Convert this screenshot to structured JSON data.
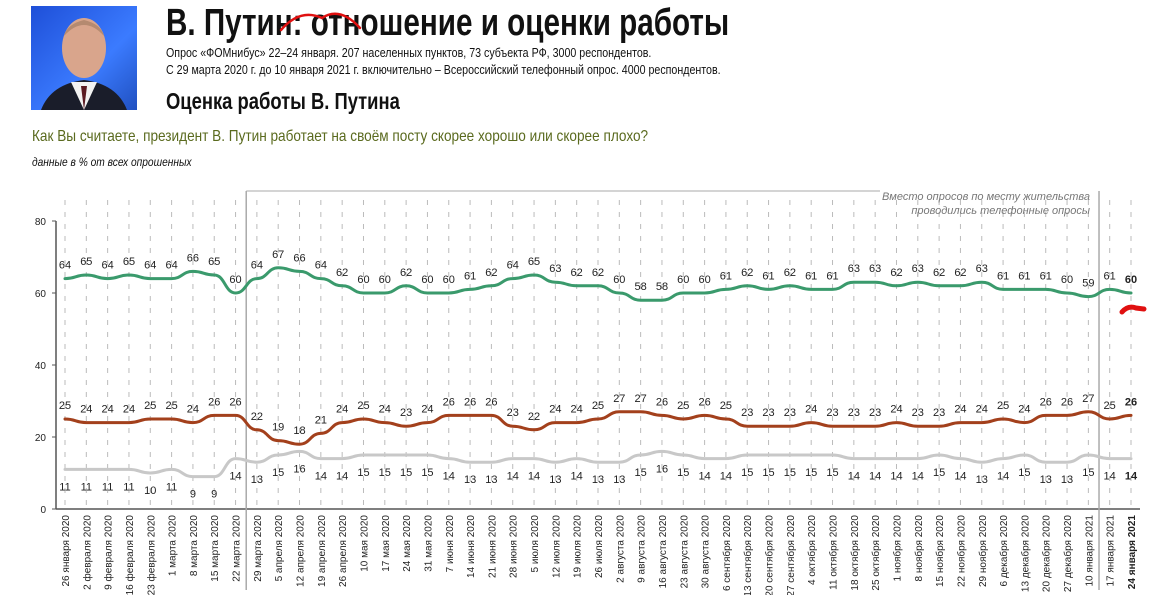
{
  "header": {
    "title": "В. Путин: отношение и оценки работы",
    "subtitle_1": "Опрос «ФОМнибус» 22–24 января. 207 населенных пунктов, 73 субъекта РФ, 3000 респондентов.",
    "subtitle_2": "С 29 марта 2020 г. до 10 января 2021 г. включительно – Всероссийский телефонный опрос. 4000 респондентов.",
    "section_title": "Оценка работы В. Путина",
    "question": "Как Вы считаете, президент В. Путин работает на своём посту скорее хорошо или скорее плохо?",
    "units": "данные в % от всех опрошенных"
  },
  "chart_data": {
    "type": "line",
    "ylim": [
      0,
      80
    ],
    "yticks": [
      0,
      20,
      40,
      60,
      80
    ],
    "grid": "vertical dashed",
    "annotation": {
      "line_1": "Вместо опросов по месту жительства",
      "line_2": "проводились телефонные опросы",
      "from": "29 марта 2020",
      "to": "10 января 2021"
    },
    "x": [
      "26 января 2020",
      "2 февраля 2020",
      "9 февраля 2020",
      "16 февраля 2020",
      "23 февраля 2020",
      "1 марта 2020",
      "8 марта 2020",
      "15 марта 2020",
      "22 марта 2020",
      "29 марта 2020",
      "5 апреля 2020",
      "12 апреля 2020",
      "19 апреля 2020",
      "26 апреля 2020",
      "10 мая 2020",
      "17 мая 2020",
      "24 мая 2020",
      "31 мая 2020",
      "7 июня 2020",
      "14 июня 2020",
      "21 июня 2020",
      "28 июня 2020",
      "5 июля 2020",
      "12 июля 2020",
      "19 июля 2020",
      "26 июля 2020",
      "2 августа 2020",
      "9 августа 2020",
      "16 августа 2020",
      "23 августа 2020",
      "30 августа 2020",
      "6 сентября 2020",
      "13 сентября 2020",
      "20 сентября 2020",
      "27 сентября 2020",
      "4 октября 2020",
      "11 октября 2020",
      "18 октября 2020",
      "25 октября 2020",
      "1 ноября 2020",
      "8 ноября 2020",
      "15 ноября 2020",
      "22 ноября 2020",
      "29 ноября 2020",
      "6 декабря 2020",
      "13 декабря 2020",
      "20 декабря 2020",
      "27 декабря 2020",
      "10 января 2021",
      "17 января 2021",
      "24 января 2021"
    ],
    "series": [
      {
        "color": "#3a9a6c",
        "label_pos": "above",
        "values": [
          64,
          65,
          64,
          65,
          64,
          64,
          66,
          65,
          60,
          64,
          67,
          66,
          64,
          62,
          60,
          60,
          62,
          60,
          60,
          61,
          62,
          64,
          65,
          63,
          62,
          62,
          60,
          58,
          58,
          60,
          60,
          61,
          62,
          61,
          62,
          61,
          61,
          63,
          63,
          62,
          63,
          62,
          62,
          63,
          61,
          61,
          61,
          60,
          59,
          61,
          60
        ]
      },
      {
        "color": "#a3401c",
        "label_pos": "above",
        "values": [
          25,
          24,
          24,
          24,
          25,
          25,
          24,
          26,
          26,
          22,
          19,
          18,
          21,
          24,
          25,
          24,
          23,
          24,
          26,
          26,
          26,
          23,
          22,
          24,
          24,
          25,
          27,
          27,
          26,
          25,
          26,
          25,
          23,
          23,
          23,
          24,
          23,
          23,
          23,
          24,
          23,
          23,
          24,
          24,
          25,
          24,
          26,
          26,
          27,
          25,
          26
        ]
      },
      {
        "color": "#c8c8c8",
        "label_pos": "below",
        "values": [
          11,
          11,
          11,
          11,
          10,
          11,
          9,
          9,
          14,
          13,
          15,
          16,
          14,
          14,
          15,
          15,
          15,
          15,
          14,
          13,
          13,
          14,
          14,
          13,
          14,
          13,
          13,
          15,
          16,
          15,
          14,
          14,
          15,
          15,
          15,
          15,
          15,
          14,
          14,
          14,
          14,
          15,
          14,
          13,
          14,
          15,
          13,
          13,
          15,
          14,
          14
        ]
      }
    ]
  },
  "colors": {
    "question": "#5a6a1e",
    "annotation_marks": "#e01010"
  }
}
